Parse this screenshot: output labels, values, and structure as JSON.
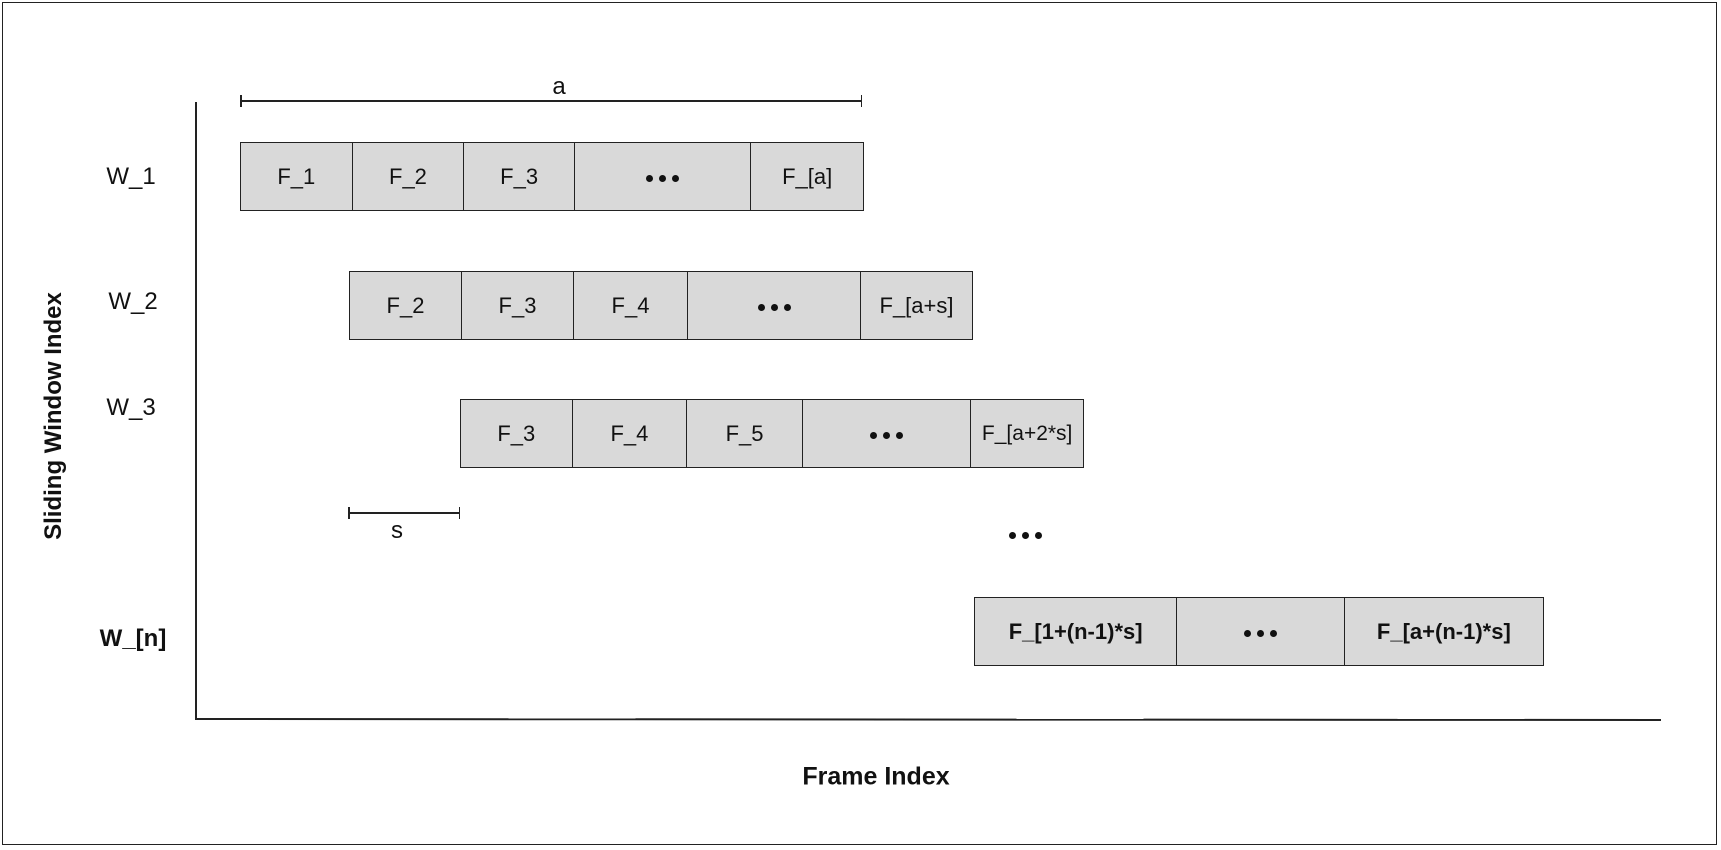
{
  "axes": {
    "y_label": "Sliding Window Index",
    "x_label": "Frame Index"
  },
  "brackets": {
    "window_length": "a",
    "stride": "s"
  },
  "windows": [
    {
      "label": "W_1",
      "cells": [
        "F_1",
        "F_2",
        "F_3",
        "…",
        "F_[a]"
      ]
    },
    {
      "label": "W_2",
      "cells": [
        "F_2",
        "F_3",
        "F_4",
        "…",
        "F_[a+s]"
      ]
    },
    {
      "label": "W_3",
      "cells": [
        "F_3",
        "F_4",
        "F_5",
        "…",
        "F_[a+2*s]"
      ]
    },
    {
      "label": "W_[n]",
      "cells": [
        "F_[1+(n-1)*s]",
        "…",
        "F_[a+(n-1)*s]"
      ]
    }
  ],
  "ellipsis_symbol": "…",
  "colors": {
    "cell_fill": "#d9d9d9",
    "stroke": "#222222"
  }
}
